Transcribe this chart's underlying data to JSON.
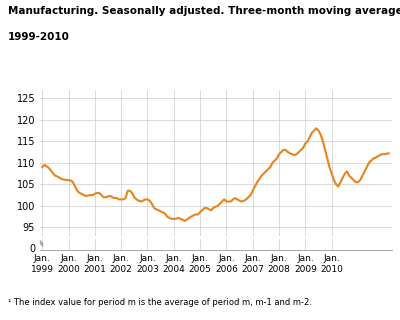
{
  "title_line1": "Manufacturing. Seasonally adjusted. Three-month moving average¹.",
  "title_line2": "1999-2010",
  "footnote": "¹ The index value for period m is the average of period m, m-1 and m-2.",
  "line_color": "#E8841A",
  "line_width": 1.5,
  "background_color": "#ffffff",
  "grid_color": "#cccccc",
  "x_tick_labels": [
    "Jan.\n1999",
    "Jan.\n2000",
    "Jan.\n2001",
    "Jan.\n2002",
    "Jan.\n2003",
    "Jan.\n2004",
    "Jan.\n2005",
    "Jan.\n2006",
    "Jan.\n2007",
    "Jan.\n2008",
    "Jan.\n2009",
    "Jan.\n2010"
  ],
  "yticks_upper": [
    95,
    100,
    105,
    110,
    115,
    120,
    125
  ],
  "yticks_lower": [
    0
  ],
  "ylim_upper": [
    93,
    127
  ],
  "ylim_lower": [
    -0.5,
    4
  ],
  "data": [
    109.0,
    109.5,
    109.2,
    108.8,
    108.2,
    107.5,
    107.0,
    106.8,
    106.5,
    106.2,
    106.1,
    106.0,
    106.0,
    105.9,
    105.5,
    104.5,
    103.5,
    103.0,
    102.8,
    102.5,
    102.3,
    102.4,
    102.5,
    102.5,
    102.8,
    103.0,
    103.0,
    102.5,
    102.0,
    102.0,
    102.2,
    102.3,
    102.0,
    101.8,
    101.8,
    101.5,
    101.5,
    101.5,
    101.8,
    103.5,
    103.5,
    103.0,
    102.0,
    101.5,
    101.2,
    101.0,
    101.2,
    101.5,
    101.5,
    101.2,
    100.5,
    99.5,
    99.2,
    99.0,
    98.7,
    98.5,
    98.2,
    97.5,
    97.2,
    97.0,
    97.0,
    97.0,
    97.2,
    97.0,
    96.8,
    96.5,
    96.8,
    97.2,
    97.5,
    97.8,
    98.0,
    98.0,
    98.5,
    99.0,
    99.5,
    99.5,
    99.2,
    99.0,
    99.5,
    99.8,
    100.0,
    100.5,
    101.0,
    101.5,
    101.0,
    101.0,
    101.0,
    101.5,
    101.8,
    101.5,
    101.2,
    101.0,
    101.2,
    101.5,
    102.0,
    102.5,
    103.5,
    104.5,
    105.5,
    106.2,
    107.0,
    107.5,
    108.0,
    108.5,
    109.0,
    110.0,
    110.5,
    111.0,
    112.0,
    112.5,
    113.0,
    113.0,
    112.5,
    112.2,
    112.0,
    111.8,
    112.0,
    112.5,
    113.0,
    113.5,
    114.5,
    115.0,
    116.0,
    117.0,
    117.5,
    118.0,
    117.5,
    116.5,
    115.0,
    113.0,
    111.0,
    109.0,
    107.5,
    106.0,
    105.0,
    104.5,
    105.5,
    106.5,
    107.5,
    108.0,
    107.0,
    106.5,
    106.0,
    105.5,
    105.5,
    106.0,
    107.0,
    108.0,
    109.0,
    110.0,
    110.5,
    111.0,
    111.2,
    111.5,
    111.8,
    112.0,
    112.0,
    112.1,
    112.2
  ]
}
